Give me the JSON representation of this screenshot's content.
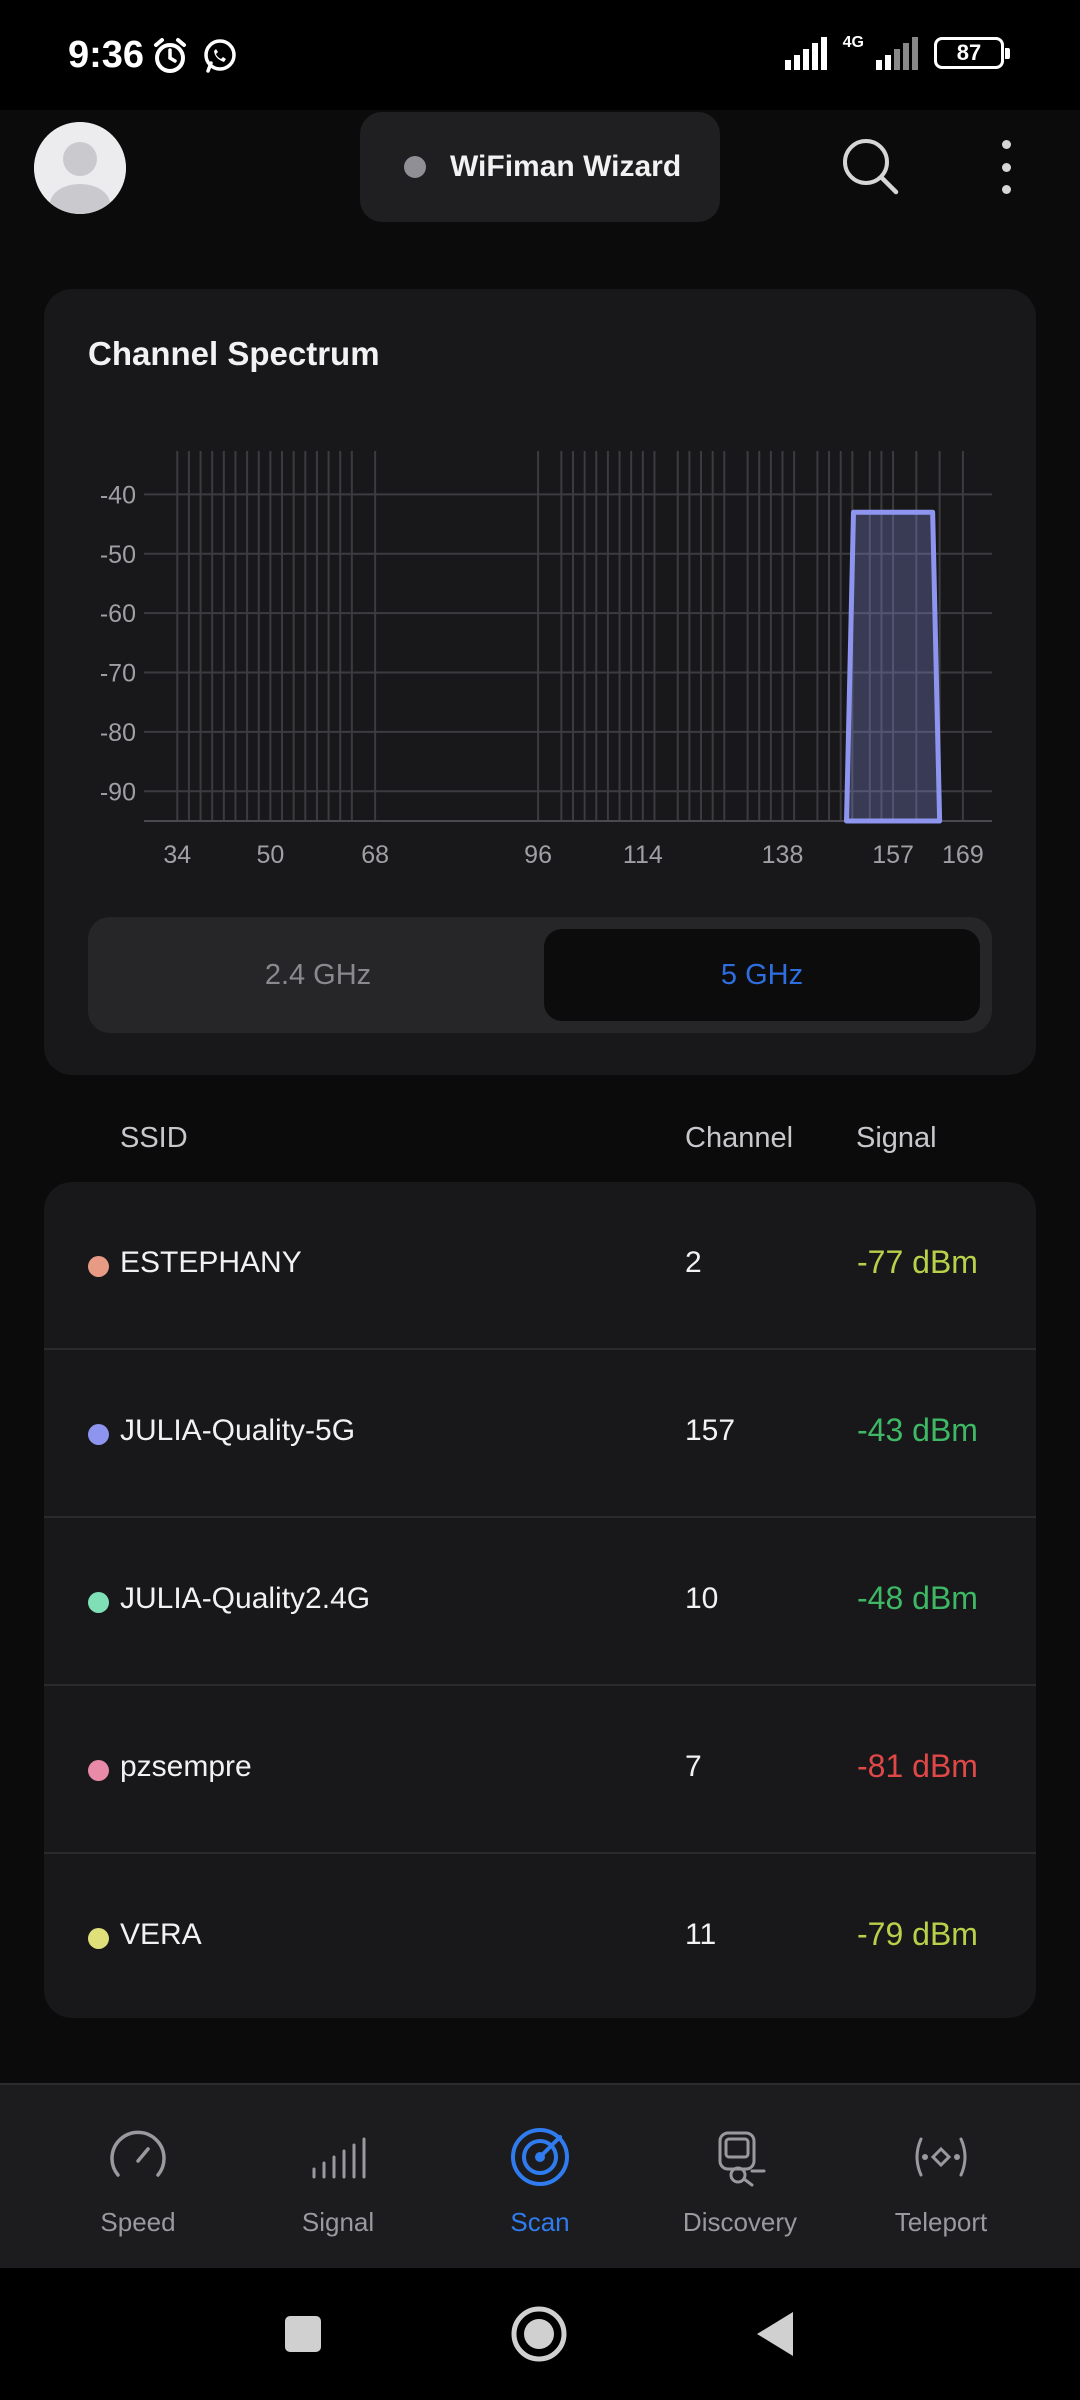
{
  "status_bar": {
    "time": "9:36",
    "network": "4G",
    "battery": "87"
  },
  "header": {
    "wizard_label": "WiFiman Wizard"
  },
  "spectrum": {
    "title": "Channel Spectrum",
    "bands": [
      "2.4 GHz",
      "5 GHz"
    ],
    "selected_band": "5 GHz"
  },
  "chart_data": {
    "type": "area",
    "title": "Channel Spectrum",
    "xlabel": "",
    "ylabel": "",
    "x_ticks": [
      34,
      50,
      68,
      96,
      114,
      138,
      157,
      169
    ],
    "y_ticks": [
      -40,
      -50,
      -60,
      -70,
      -80,
      -90
    ],
    "ylim": [
      -95,
      -30
    ],
    "xlim": [
      30,
      174
    ],
    "grid": true,
    "channel_lines": [
      34,
      36,
      38,
      40,
      42,
      44,
      46,
      48,
      50,
      52,
      54,
      56,
      58,
      60,
      62,
      64,
      68,
      96,
      100,
      102,
      104,
      106,
      108,
      110,
      112,
      114,
      116,
      120,
      122,
      124,
      126,
      128,
      132,
      134,
      136,
      138,
      140,
      144,
      146,
      148,
      150,
      153,
      155,
      157,
      161,
      165,
      169
    ],
    "series": [
      {
        "ssid": "JULIA-Quality-5G",
        "channel": 157,
        "bandwidth_mhz": 80,
        "signal_dbm": -43,
        "color": "#8e95ee"
      }
    ]
  },
  "table": {
    "headers": {
      "ssid": "SSID",
      "channel": "Channel",
      "signal": "Signal"
    },
    "rows": [
      {
        "ssid": "ESTEPHANY",
        "channel": "2",
        "signal": "-77 dBm",
        "dot_color": "#e89b84",
        "signal_color": "#b9d04a"
      },
      {
        "ssid": "JULIA-Quality-5G",
        "channel": "157",
        "signal": "-43 dBm",
        "dot_color": "#8e95ee",
        "signal_color": "#3fb865"
      },
      {
        "ssid": "JULIA-Quality2.4G",
        "channel": "10",
        "signal": "-48 dBm",
        "dot_color": "#7fe0b8",
        "signal_color": "#3fb865"
      },
      {
        "ssid": "pzsempre",
        "channel": "7",
        "signal": "-81 dBm",
        "dot_color": "#e88aa8",
        "signal_color": "#e04848"
      },
      {
        "ssid": "VERA",
        "channel": "11",
        "signal": "-79 dBm",
        "dot_color": "#dfe07a",
        "signal_color": "#b9d04a"
      }
    ]
  },
  "bottom_nav": {
    "items": [
      {
        "label": "Speed",
        "icon": "speedometer-icon"
      },
      {
        "label": "Signal",
        "icon": "signal-bars-icon"
      },
      {
        "label": "Scan",
        "icon": "radar-icon",
        "active": true
      },
      {
        "label": "Discovery",
        "icon": "device-search-icon"
      },
      {
        "label": "Teleport",
        "icon": "teleport-icon"
      }
    ]
  },
  "colors": {
    "accent": "#2f7cf0",
    "card": "#18181a",
    "background": "#0b0b0c"
  }
}
